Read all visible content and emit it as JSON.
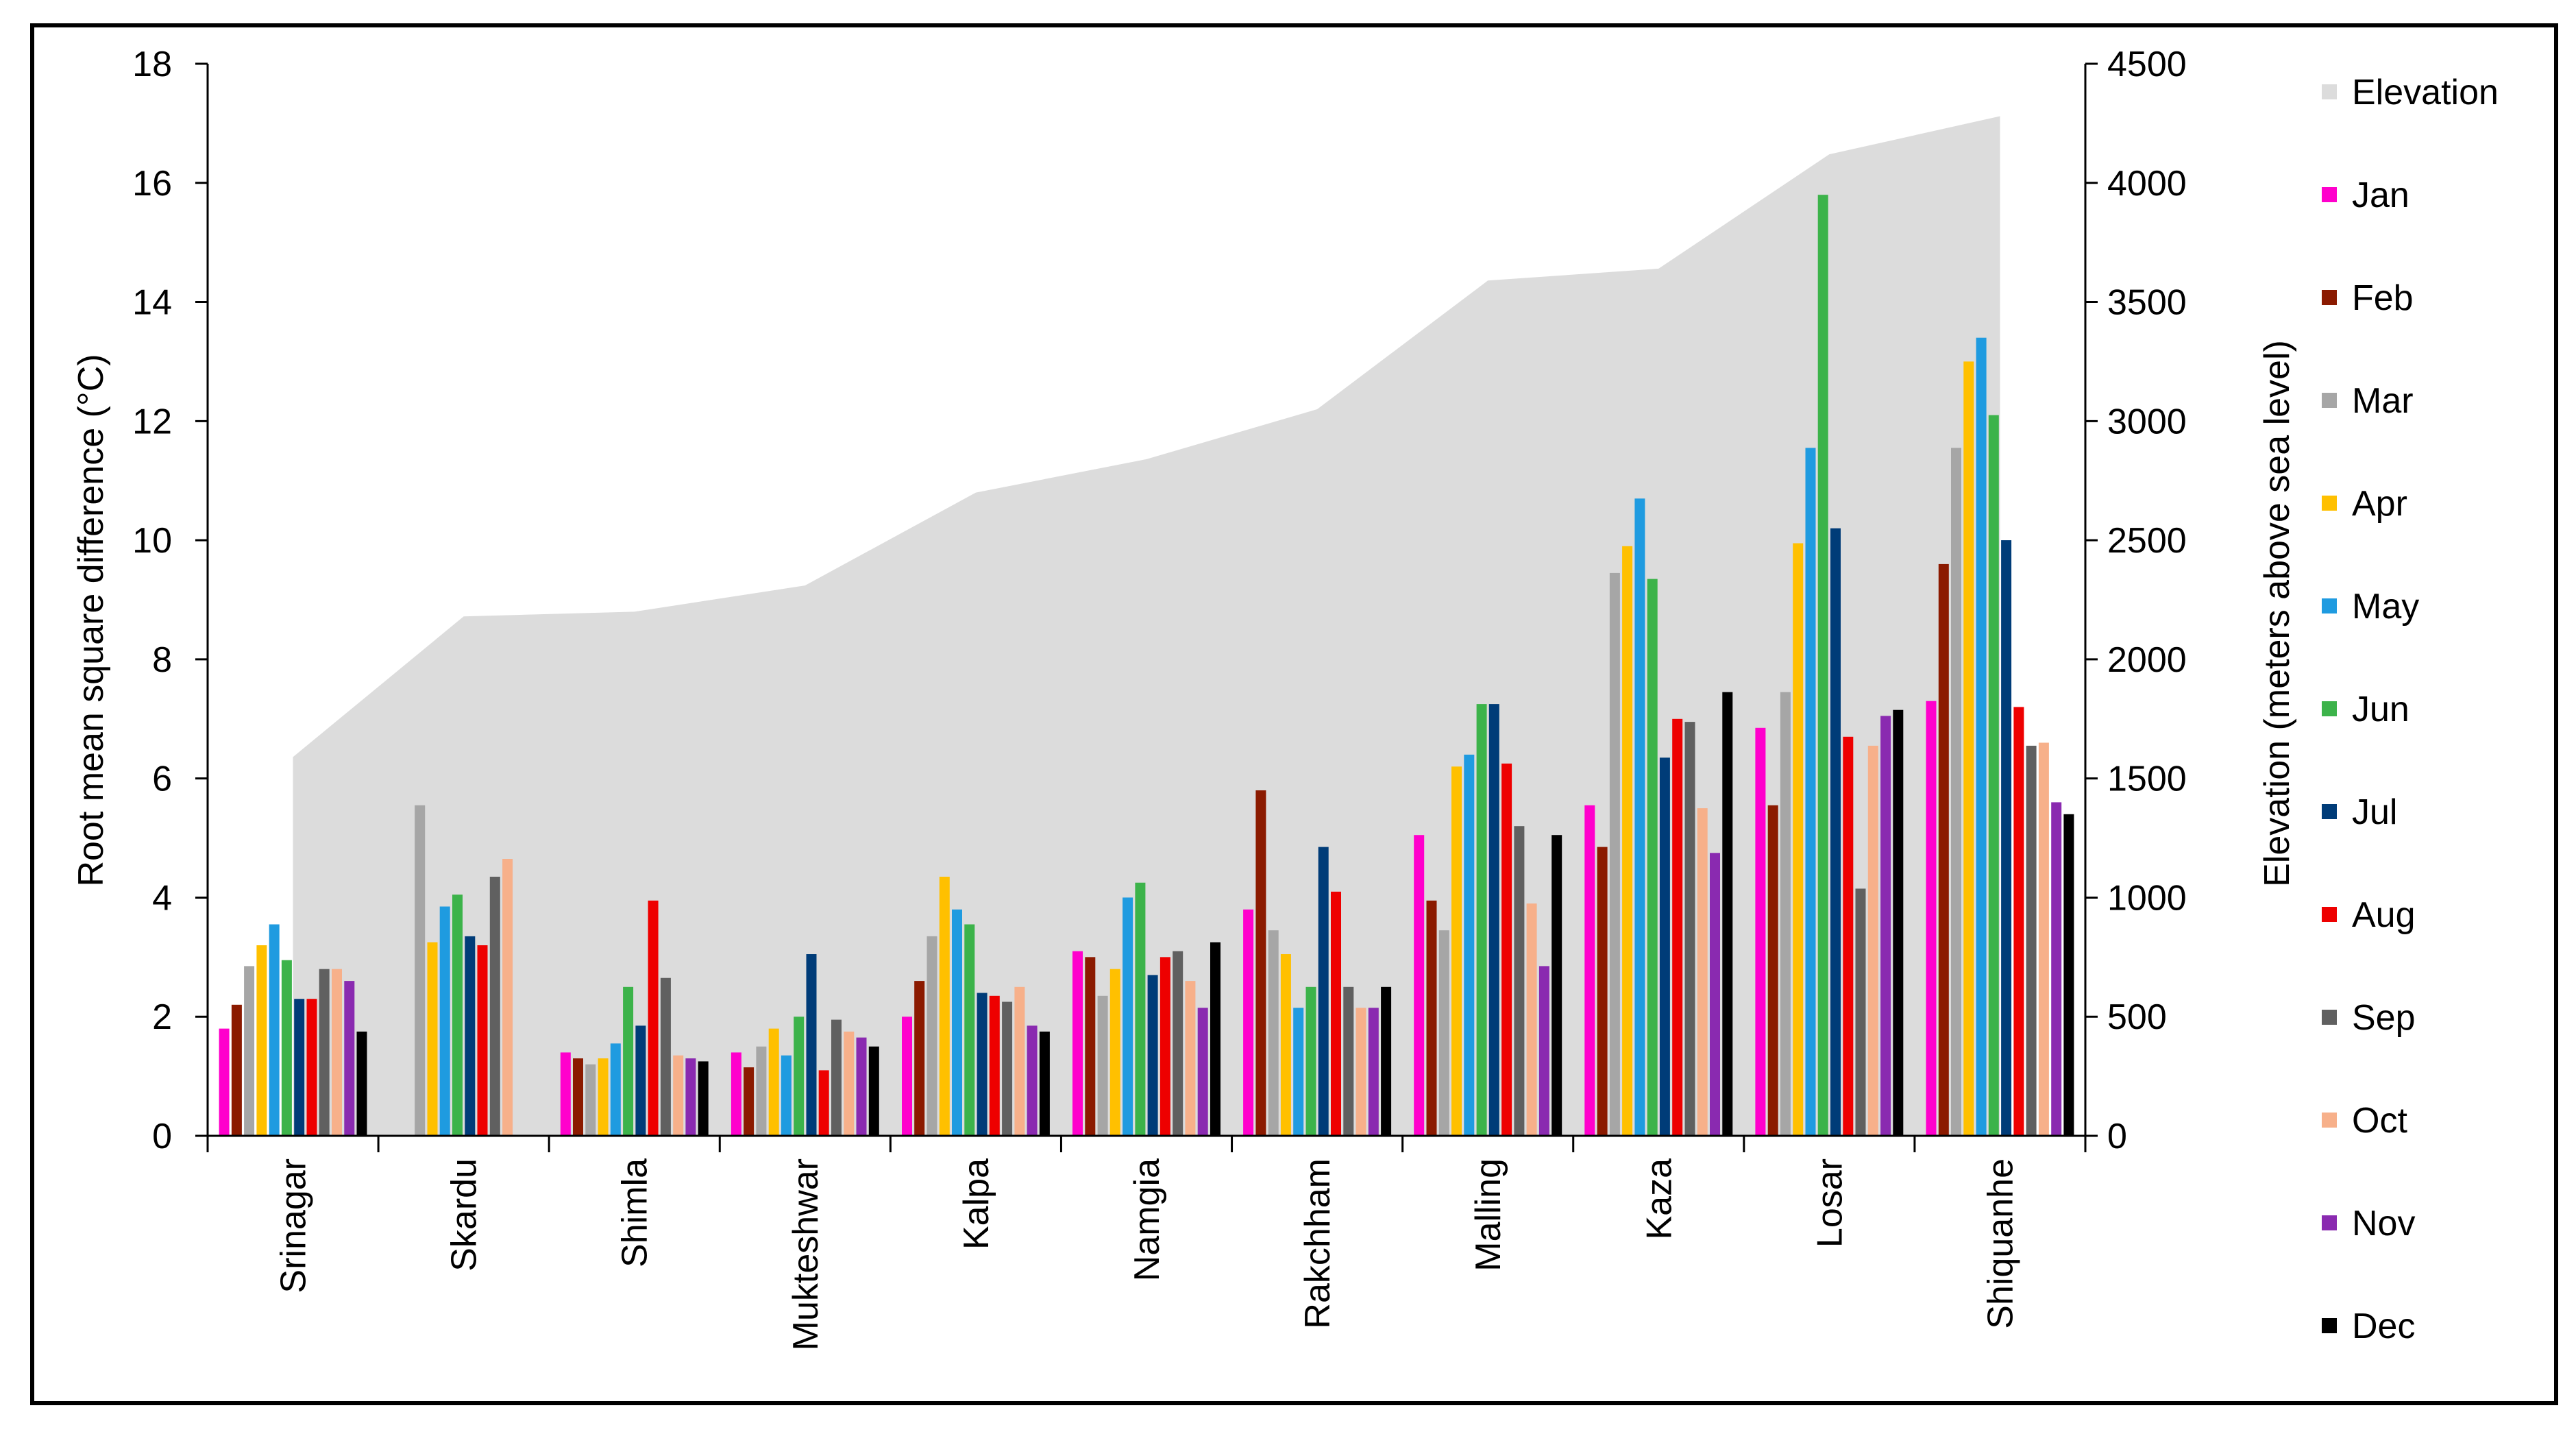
{
  "chart_data": {
    "type": "bar",
    "ylabel": "Root mean square difference (°C)",
    "y2label": "Elevation (meters above sea level)",
    "ylim": [
      0,
      18
    ],
    "y2lim": [
      0,
      4500
    ],
    "yticks": [
      0,
      2,
      4,
      6,
      8,
      10,
      12,
      14,
      16,
      18
    ],
    "y2ticks": [
      0,
      500,
      1000,
      1500,
      2000,
      2500,
      3000,
      3500,
      4000,
      4500
    ],
    "legend_position": "right",
    "categories": [
      "Srinagar",
      "Skardu",
      "Shimla",
      "Mukteshwar",
      "Kalpa",
      "Namgia",
      "Rakchham",
      "Malling",
      "Kaza",
      "Losar",
      "Shiquanhe"
    ],
    "elevation": {
      "name": "Elevation",
      "color": "#dcdcdc",
      "values": [
        1590,
        2180,
        2200,
        2310,
        2700,
        2840,
        3050,
        3590,
        3640,
        4120,
        4280
      ]
    },
    "series": [
      {
        "name": "Jan",
        "color": "#ff00cc",
        "values": [
          1.8,
          null,
          1.4,
          1.4,
          2.0,
          3.1,
          3.8,
          5.05,
          5.55,
          6.85,
          7.3
        ]
      },
      {
        "name": "Feb",
        "color": "#8b1a00",
        "values": [
          2.2,
          null,
          1.3,
          1.15,
          2.6,
          3.0,
          5.8,
          3.95,
          4.85,
          5.55,
          9.6
        ]
      },
      {
        "name": "Mar",
        "color": "#a6a6a6",
        "values": [
          2.85,
          5.55,
          1.2,
          1.5,
          3.35,
          2.35,
          3.45,
          3.45,
          9.45,
          7.45,
          11.55
        ]
      },
      {
        "name": "Apr",
        "color": "#ffc000",
        "values": [
          3.2,
          3.25,
          1.3,
          1.8,
          4.35,
          2.8,
          3.05,
          6.2,
          9.9,
          9.95,
          13.0
        ]
      },
      {
        "name": "May",
        "color": "#1f9be0",
        "values": [
          3.55,
          3.85,
          1.55,
          1.35,
          3.8,
          4.0,
          2.15,
          6.4,
          10.7,
          11.55,
          13.4
        ]
      },
      {
        "name": "Jun",
        "color": "#3cb34a",
        "values": [
          2.95,
          4.05,
          2.5,
          2.0,
          3.55,
          4.25,
          2.5,
          7.25,
          9.35,
          15.8,
          12.1
        ]
      },
      {
        "name": "Jul",
        "color": "#003c78",
        "values": [
          2.3,
          3.35,
          1.85,
          3.05,
          2.4,
          2.7,
          4.85,
          7.25,
          6.35,
          10.2,
          10.0
        ]
      },
      {
        "name": "Aug",
        "color": "#ee0000",
        "values": [
          2.3,
          3.2,
          3.95,
          1.1,
          2.35,
          3.0,
          4.1,
          6.25,
          7.0,
          6.7,
          7.2
        ]
      },
      {
        "name": "Sep",
        "color": "#606060",
        "values": [
          2.8,
          4.35,
          2.65,
          1.95,
          2.25,
          3.1,
          2.5,
          5.2,
          6.95,
          4.15,
          6.55
        ]
      },
      {
        "name": "Oct",
        "color": "#f7b08a",
        "values": [
          2.8,
          4.65,
          1.35,
          1.75,
          2.5,
          2.6,
          2.15,
          3.9,
          5.5,
          6.55,
          6.6
        ]
      },
      {
        "name": "Nov",
        "color": "#8a2ab0",
        "values": [
          2.6,
          null,
          1.3,
          1.65,
          1.85,
          2.15,
          2.15,
          2.85,
          4.75,
          7.05,
          5.6
        ]
      },
      {
        "name": "Dec",
        "color": "#000000",
        "values": [
          1.75,
          null,
          1.25,
          1.5,
          1.75,
          3.25,
          2.5,
          5.05,
          7.45,
          7.15,
          5.4
        ]
      }
    ]
  }
}
